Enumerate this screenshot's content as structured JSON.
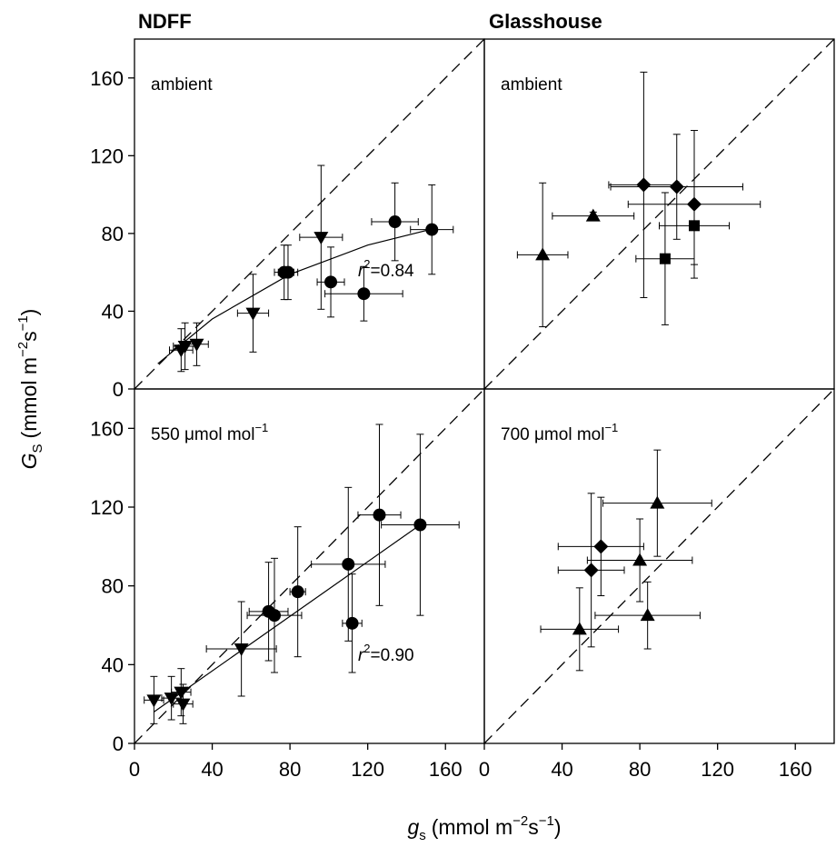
{
  "figure": {
    "column_titles": [
      "NDFF",
      "Glasshouse"
    ],
    "ylabel": {
      "main": "G",
      "sub": "S",
      "units": "(mmol m",
      "sup1": "−2",
      "mid": "s",
      "sup2": "−1",
      "close": ")"
    },
    "xlabel": {
      "main": "g",
      "sub": "s",
      "units": "(mmol m",
      "sup1": "−2",
      "mid": "s",
      "sup2": "−1",
      "close": ")"
    },
    "axis_ticks": [
      "0",
      "40",
      "80",
      "120",
      "160"
    ]
  },
  "chart_data": [
    {
      "type": "scatter",
      "panel_label": "ambient",
      "xlim": [
        0,
        180
      ],
      "ylim": [
        0,
        180
      ],
      "x_ticks": [],
      "y_ticks": [
        0,
        40,
        80,
        120,
        160
      ],
      "one_to_one_line": true,
      "fit_curve": {
        "kind": "quadratic",
        "points": [
          [
            12,
            13
          ],
          [
            40,
            36
          ],
          [
            80,
            59
          ],
          [
            120,
            74
          ],
          [
            152,
            82
          ]
        ]
      },
      "annotation": {
        "text": "=0.84",
        "symbol": "r",
        "sup": "2",
        "x": 115,
        "y": 58
      },
      "series": [
        {
          "marker": "circle",
          "points": [
            {
              "x": 77,
              "y": 60,
              "xerr": 5,
              "yerr": 14
            },
            {
              "x": 79,
              "y": 60,
              "xerr": 5,
              "yerr": 14
            },
            {
              "x": 101,
              "y": 55,
              "xerr": 7,
              "yerr": 18
            },
            {
              "x": 118,
              "y": 49,
              "xerr": 20,
              "yerr": 14
            },
            {
              "x": 134,
              "y": 86,
              "xerr": 12,
              "yerr": 20
            },
            {
              "x": 153,
              "y": 82,
              "xerr": 11,
              "yerr": 23
            }
          ]
        },
        {
          "marker": "triangle-down",
          "points": [
            {
              "x": 24,
              "y": 20,
              "xerr": 6,
              "yerr": 11
            },
            {
              "x": 26,
              "y": 22,
              "xerr": 6,
              "yerr": 12
            },
            {
              "x": 32,
              "y": 23,
              "xerr": 6,
              "yerr": 11
            },
            {
              "x": 61,
              "y": 39,
              "xerr": 8,
              "yerr": 20
            },
            {
              "x": 96,
              "y": 78,
              "xerr": 11,
              "yerr": 37
            }
          ]
        }
      ]
    },
    {
      "type": "scatter",
      "panel_label": "ambient",
      "xlim": [
        0,
        180
      ],
      "ylim": [
        0,
        180
      ],
      "x_ticks": [],
      "y_ticks": [],
      "one_to_one_line": true,
      "series": [
        {
          "marker": "triangle-up",
          "points": [
            {
              "x": 30,
              "y": 69,
              "xerr": 13,
              "yerr": 37
            },
            {
              "x": 56,
              "y": 89,
              "xerr": 21,
              "yerr": 2
            }
          ]
        },
        {
          "marker": "diamond",
          "points": [
            {
              "x": 82,
              "y": 105,
              "xerr": 18,
              "yerr": 58
            },
            {
              "x": 99,
              "y": 104,
              "xerr": 34,
              "yerr": 27
            },
            {
              "x": 108,
              "y": 95,
              "xerr": 34,
              "yerr": 38
            }
          ]
        },
        {
          "marker": "square",
          "points": [
            {
              "x": 108,
              "y": 84,
              "xerr": 18,
              "yerr": 20
            },
            {
              "x": 93,
              "y": 67,
              "xerr": 15,
              "yerr": 34
            }
          ]
        }
      ]
    },
    {
      "type": "scatter",
      "panel_label": "550 μmol mol",
      "panel_label_sup": "−1",
      "xlim": [
        0,
        180
      ],
      "ylim": [
        0,
        180
      ],
      "x_ticks": [
        0,
        40,
        80,
        120,
        160
      ],
      "y_ticks": [
        0,
        40,
        80,
        120,
        160
      ],
      "one_to_one_line": true,
      "fit_curve": {
        "kind": "linear",
        "points": [
          [
            10,
            16
          ],
          [
            147,
            111
          ]
        ]
      },
      "annotation": {
        "text": "=0.90",
        "symbol": "r",
        "sup": "2",
        "x": 115,
        "y": 42
      },
      "series": [
        {
          "marker": "circle",
          "points": [
            {
              "x": 69,
              "y": 67,
              "xerr": 10,
              "yerr": 25
            },
            {
              "x": 72,
              "y": 65,
              "xerr": 14,
              "yerr": 29
            },
            {
              "x": 84,
              "y": 77,
              "xerr": 4,
              "yerr": 33
            },
            {
              "x": 110,
              "y": 91,
              "xerr": 19,
              "yerr": 39
            },
            {
              "x": 112,
              "y": 61,
              "xerr": 5,
              "yerr": 25
            },
            {
              "x": 126,
              "y": 116,
              "xerr": 11,
              "yerr": 46
            },
            {
              "x": 147,
              "y": 111,
              "xerr": 20,
              "yerr": 46
            }
          ]
        },
        {
          "marker": "triangle-down",
          "points": [
            {
              "x": 10,
              "y": 22,
              "xerr": 5,
              "yerr": 12
            },
            {
              "x": 19,
              "y": 23,
              "xerr": 5,
              "yerr": 11
            },
            {
              "x": 24,
              "y": 26,
              "xerr": 5,
              "yerr": 12
            },
            {
              "x": 25,
              "y": 20,
              "xerr": 5,
              "yerr": 10
            },
            {
              "x": 55,
              "y": 48,
              "xerr": 18,
              "yerr": 24
            }
          ]
        }
      ]
    },
    {
      "type": "scatter",
      "panel_label": "700 μmol mol",
      "panel_label_sup": "−1",
      "xlim": [
        0,
        180
      ],
      "ylim": [
        0,
        180
      ],
      "x_ticks": [
        0,
        40,
        80,
        120,
        160
      ],
      "y_ticks": [],
      "one_to_one_line": true,
      "series": [
        {
          "marker": "triangle-up",
          "points": [
            {
              "x": 49,
              "y": 58,
              "xerr": 20,
              "yerr": 21
            },
            {
              "x": 80,
              "y": 93,
              "xerr": 27,
              "yerr": 21
            },
            {
              "x": 84,
              "y": 65,
              "xerr": 27,
              "yerr": 17
            },
            {
              "x": 89,
              "y": 122,
              "xerr": 28,
              "yerr": 27
            }
          ]
        },
        {
          "marker": "diamond",
          "points": [
            {
              "x": 55,
              "y": 88,
              "xerr": 17,
              "yerr": 39
            },
            {
              "x": 60,
              "y": 100,
              "xerr": 22,
              "yerr": 25
            }
          ]
        }
      ]
    }
  ]
}
